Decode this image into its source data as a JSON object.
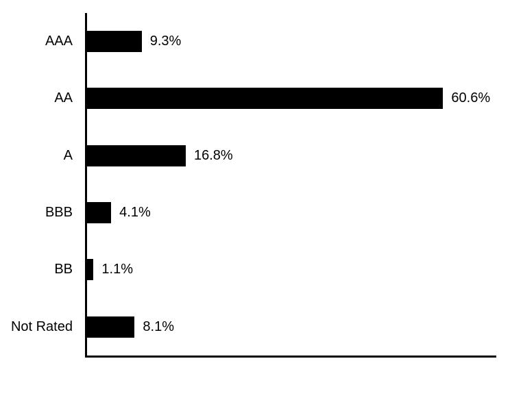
{
  "chart_data": {
    "type": "bar",
    "orientation": "horizontal",
    "categories": [
      "AAA",
      "AA",
      "A",
      "BBB",
      "BB",
      "Not Rated"
    ],
    "values": [
      9.3,
      60.6,
      16.8,
      4.1,
      1.1,
      8.1
    ],
    "value_labels": [
      "9.3%",
      "60.6%",
      "16.8%",
      "4.1%",
      "1.1%",
      "8.1%"
    ],
    "title": "",
    "xlabel": "",
    "ylabel": "",
    "xlim": [
      0,
      70
    ],
    "grid": false,
    "legend": false,
    "bar_color": "#000000",
    "axis_color": "#000000",
    "text_color": "#000000"
  }
}
